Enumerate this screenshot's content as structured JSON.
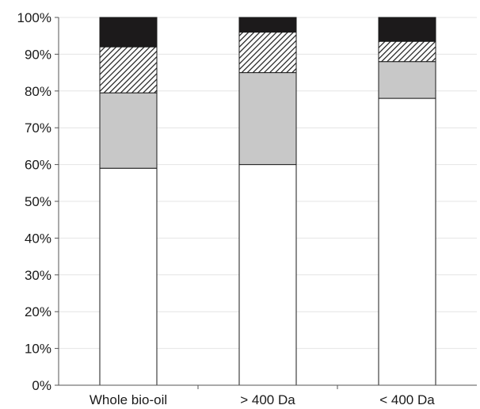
{
  "chart_data": {
    "type": "bar",
    "stacked": true,
    "percent": true,
    "title": "",
    "xlabel": "",
    "ylabel": "",
    "ylim": [
      0,
      100
    ],
    "yticks": [
      "0%",
      "10%",
      "20%",
      "30%",
      "40%",
      "50%",
      "60%",
      "70%",
      "80%",
      "90%",
      "100%"
    ],
    "categories": [
      "Whole bio-oil",
      "> 400 Da",
      "< 400 Da"
    ],
    "grid": true,
    "legend": "none",
    "series": [
      {
        "values": [
          59,
          60,
          78
        ],
        "color": "#ffffff",
        "pattern": "solid"
      },
      {
        "values": [
          20.5,
          25,
          10
        ],
        "color": "#c8c8c8",
        "pattern": "solid"
      },
      {
        "values": [
          12.5,
          11,
          5.5
        ],
        "color": "#1a1a1a",
        "pattern": "diagonal-hatch"
      },
      {
        "values": [
          8,
          4,
          6.5
        ],
        "color": "#1c1a1b",
        "pattern": "solid"
      }
    ]
  }
}
